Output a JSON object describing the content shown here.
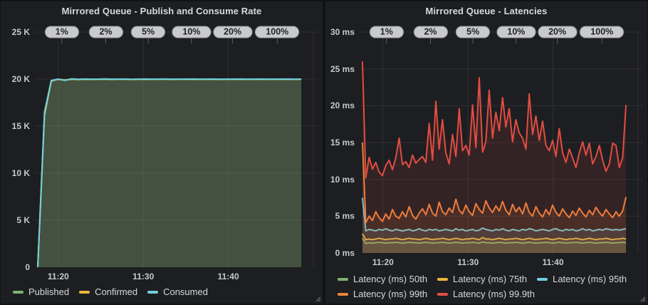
{
  "chart_data": [
    {
      "type": "area",
      "title": "Mirrored Queue - Publish and Consume Rate",
      "x_axis": {
        "tick_labels": [
          "11:20",
          "11:30",
          "11:40"
        ],
        "visible_range": "about 11:17 to 11:50"
      },
      "ylim": [
        0,
        25000
      ],
      "y_tick_labels": [
        "0",
        "5 K",
        "10 K",
        "15 K",
        "20 K",
        "25 K"
      ],
      "annotations": [
        "1%",
        "2%",
        "5%",
        "10%",
        "20%",
        "100%"
      ],
      "grid": true,
      "legend_position": "bottom",
      "series": [
        {
          "name": "Published",
          "color": "#7eb26d",
          "values": [
            0,
            16100,
            19780,
            19985,
            19880,
            19985,
            19950,
            19985,
            19960,
            19985,
            19985,
            19960,
            19985,
            19985,
            19955,
            19985,
            19980,
            19970,
            19985,
            19985,
            19960,
            19985,
            19980,
            19985,
            19970,
            19985,
            19980,
            19960,
            19985,
            19980,
            19985,
            19970,
            19985,
            19980,
            19970,
            19985,
            19980,
            19985,
            19970,
            19985
          ]
        },
        {
          "name": "Confirmed",
          "color": "#eab839",
          "values": [
            0,
            16300,
            19800,
            19990,
            19900,
            19990,
            19960,
            19990,
            19970,
            19990,
            19990,
            19970,
            19990,
            19990,
            19965,
            19990,
            19985,
            19975,
            19990,
            19990,
            19970,
            19990,
            19985,
            19990,
            19975,
            19990,
            19985,
            19970,
            19990,
            19985,
            19990,
            19975,
            19990,
            19985,
            19975,
            19990,
            19985,
            19990,
            19975,
            19990
          ]
        },
        {
          "name": "Consumed",
          "color": "#6ed0e0",
          "values": [
            0,
            16500,
            19850,
            20000,
            19860,
            20030,
            19980,
            20010,
            19990,
            20000,
            20020,
            19990,
            20000,
            20010,
            19985,
            20000,
            20005,
            19995,
            20000,
            20010,
            19990,
            20000,
            20000,
            20010,
            19995,
            20000,
            20005,
            19990,
            20000,
            20000,
            20010,
            19995,
            20000,
            20005,
            19995,
            20000,
            20000,
            20005,
            19995,
            20000
          ]
        }
      ]
    },
    {
      "type": "area",
      "title": "Mirrored Queue - Latencies",
      "x_axis": {
        "tick_labels": [
          "11:20",
          "11:30",
          "11:40"
        ],
        "visible_range": "about 11:17 to 11:50"
      },
      "ylim": [
        0,
        30
      ],
      "y_tick_labels": [
        "0 ms",
        "5 ms",
        "10 ms",
        "15 ms",
        "20 ms",
        "25 ms",
        "30 ms"
      ],
      "annotations": [
        "1%",
        "2%",
        "5%",
        "10%",
        "20%",
        "100%"
      ],
      "grid": true,
      "legend_position": "bottom",
      "series": [
        {
          "name": "Latency (ms) 50th",
          "color": "#7eb26d",
          "values": [
            2.0,
            1.3,
            1.4,
            1.35,
            1.4,
            1.45,
            1.4,
            1.35,
            1.4,
            1.4,
            1.45,
            1.4,
            1.35,
            1.4,
            1.45,
            1.4,
            1.4,
            1.35,
            1.4,
            1.45,
            1.4,
            1.35,
            1.4,
            1.4,
            1.45,
            1.4,
            1.35,
            1.4,
            1.45,
            1.4,
            1.35,
            1.4,
            1.4,
            1.45,
            1.4,
            1.35,
            1.5,
            1.4,
            1.4,
            1.35,
            1.4,
            1.45,
            1.4,
            1.35,
            1.4,
            1.4,
            1.45,
            1.4,
            1.35,
            1.4,
            1.45,
            1.4,
            1.35,
            1.4,
            1.4,
            1.45,
            1.4,
            1.35,
            1.4,
            1.45,
            1.4,
            1.35,
            1.4,
            1.4,
            1.45,
            1.4,
            1.35,
            1.4,
            1.45,
            1.4,
            1.35,
            1.4,
            1.4,
            1.45,
            1.4,
            1.35,
            1.4,
            1.4,
            1.45,
            1.4
          ]
        },
        {
          "name": "Latency (ms) 75th",
          "color": "#eab839",
          "values": [
            2.6,
            1.8,
            1.9,
            1.8,
            1.9,
            2.0,
            1.9,
            1.8,
            1.9,
            1.9,
            2.0,
            1.9,
            1.8,
            1.9,
            2.0,
            1.9,
            1.9,
            1.8,
            1.9,
            2.0,
            1.9,
            1.8,
            1.9,
            1.9,
            2.0,
            1.9,
            1.8,
            1.9,
            2.0,
            1.9,
            1.8,
            1.9,
            1.9,
            2.0,
            1.9,
            1.8,
            2.1,
            1.9,
            1.9,
            1.8,
            1.9,
            2.0,
            1.9,
            1.8,
            1.9,
            1.9,
            2.0,
            1.9,
            1.8,
            1.9,
            2.0,
            1.9,
            1.8,
            1.9,
            1.9,
            2.0,
            1.9,
            1.8,
            1.9,
            2.0,
            1.9,
            1.8,
            1.9,
            1.9,
            2.0,
            1.9,
            1.8,
            1.9,
            2.0,
            1.9,
            1.8,
            1.9,
            1.9,
            2.0,
            1.9,
            1.8,
            1.9,
            1.9,
            2.0,
            1.9
          ]
        },
        {
          "name": "Latency (ms) 95th",
          "color": "#6ed0e0",
          "values": [
            7.5,
            3.0,
            3.2,
            3.1,
            3.0,
            3.2,
            3.1,
            3.3,
            3.1,
            3.0,
            3.2,
            3.1,
            3.0,
            3.1,
            3.2,
            3.0,
            3.1,
            3.3,
            3.1,
            3.0,
            3.2,
            3.1,
            3.2,
            3.0,
            3.1,
            3.2,
            3.1,
            3.0,
            3.3,
            3.1,
            3.2,
            3.0,
            3.1,
            3.2,
            3.0,
            3.1,
            3.4,
            3.2,
            3.1,
            3.0,
            3.2,
            3.1,
            3.3,
            3.1,
            3.0,
            3.2,
            3.1,
            3.0,
            3.2,
            3.1,
            3.3,
            3.2,
            3.0,
            3.1,
            3.2,
            3.1,
            3.0,
            3.2,
            3.3,
            3.1,
            3.0,
            3.2,
            3.1,
            3.2,
            3.0,
            3.1,
            3.3,
            3.1,
            3.2,
            3.0,
            3.1,
            3.2,
            3.1,
            3.3,
            3.2,
            3.1,
            3.2,
            3.1,
            3.2,
            3.3
          ]
        },
        {
          "name": "Latency (ms) 99th",
          "color": "#ef843c",
          "values": [
            15.0,
            4.1,
            5.0,
            4.4,
            5.6,
            4.8,
            4.3,
            5.3,
            4.6,
            5.9,
            5.0,
            4.7,
            5.6,
            4.9,
            6.3,
            5.1,
            4.6,
            5.4,
            6.0,
            5.2,
            6.6,
            5.4,
            5.0,
            6.9,
            5.6,
            5.2,
            6.1,
            5.5,
            7.3,
            5.8,
            5.3,
            6.5,
            5.6,
            5.1,
            6.7,
            5.9,
            5.4,
            7.1,
            6.1,
            5.5,
            6.4,
            5.7,
            7.0,
            5.8,
            5.2,
            6.6,
            5.6,
            6.2,
            5.3,
            6.8,
            5.5,
            5.0,
            6.3,
            5.4,
            4.9,
            5.9,
            5.2,
            6.5,
            5.5,
            5.0,
            6.0,
            5.3,
            4.8,
            5.7,
            5.1,
            6.1,
            5.4,
            4.9,
            5.8,
            5.2,
            6.2,
            5.5,
            5.0,
            5.9,
            5.3,
            4.8,
            5.6,
            5.0,
            5.7,
            7.6
          ]
        },
        {
          "name": "Latency (ms) 99.9th",
          "color": "#e24d42",
          "values": [
            26,
            10.2,
            13.0,
            11.4,
            12.3,
            11.0,
            10.5,
            11.9,
            12.6,
            11.3,
            12.9,
            15.6,
            12.0,
            12.4,
            11.6,
            13.3,
            12.2,
            12.7,
            13.1,
            12.3,
            17.6,
            12.6,
            20.6,
            14.1,
            18.1,
            13.6,
            12.1,
            16.1,
            13.1,
            19.6,
            13.9,
            14.6,
            13.3,
            20.1,
            14.3,
            23.8,
            13.7,
            15.1,
            22.1,
            15.6,
            19.1,
            16.6,
            21.1,
            17.1,
            19.6,
            15.1,
            18.1,
            16.3,
            15.6,
            14.1,
            21.6,
            16.1,
            18.6,
            15.3,
            17.9,
            14.6,
            13.9,
            15.3,
            13.1,
            16.9,
            13.6,
            12.3,
            14.1,
            12.9,
            11.6,
            13.6,
            15.1,
            13.3,
            14.9,
            12.1,
            13.1,
            14.6,
            12.6,
            11.1,
            12.1,
            14.9,
            14.6,
            11.6,
            12.9,
            20.1
          ]
        }
      ]
    }
  ]
}
